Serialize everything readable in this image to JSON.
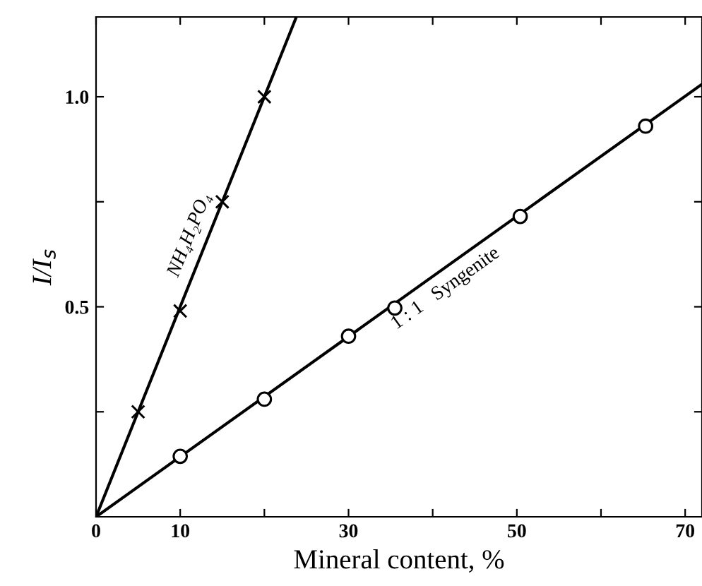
{
  "chart_data": {
    "type": "line",
    "xlabel": "Mineral content, %",
    "ylabel": "I/I$_{s}$",
    "xlim": [
      0,
      72
    ],
    "ylim": [
      0,
      1.19
    ],
    "xticks": [
      0,
      10,
      {
        "value": 20,
        "label": null
      },
      30,
      {
        "value": 40,
        "label": null
      },
      50,
      {
        "value": 60,
        "label": null
      },
      70
    ],
    "yticks": [
      {
        "value": 0.25,
        "label": null
      },
      {
        "value": 0.5,
        "label": "0.5"
      },
      {
        "value": 0.75,
        "label": null
      },
      {
        "value": 1.0,
        "label": "1.0"
      }
    ],
    "grid": false,
    "legend": false,
    "series": [
      {
        "marker": "none",
        "color": "#000000",
        "x": [
          0,
          23.8
        ],
        "values": [
          0,
          1.19
        ]
      },
      {
        "type": "scatter",
        "marker": "cross",
        "color": "#000000",
        "x": [
          5,
          10,
          15,
          20
        ],
        "values": [
          0.25,
          0.49,
          0.75,
          1.0
        ]
      },
      {
        "marker": "none",
        "color": "#000000",
        "x": [
          0,
          72
        ],
        "values": [
          0,
          1.03
        ]
      },
      {
        "type": "scatter",
        "marker": "circle",
        "color": "#000000",
        "x": [
          10,
          20,
          30,
          35.5,
          50.4,
          65.3
        ],
        "values": [
          0.144,
          0.28,
          0.43,
          0.497,
          0.715,
          0.93
        ]
      }
    ],
    "annotations": [
      "NH₄H₂PO₄",
      "1 : 1   Syngenite"
    ]
  }
}
